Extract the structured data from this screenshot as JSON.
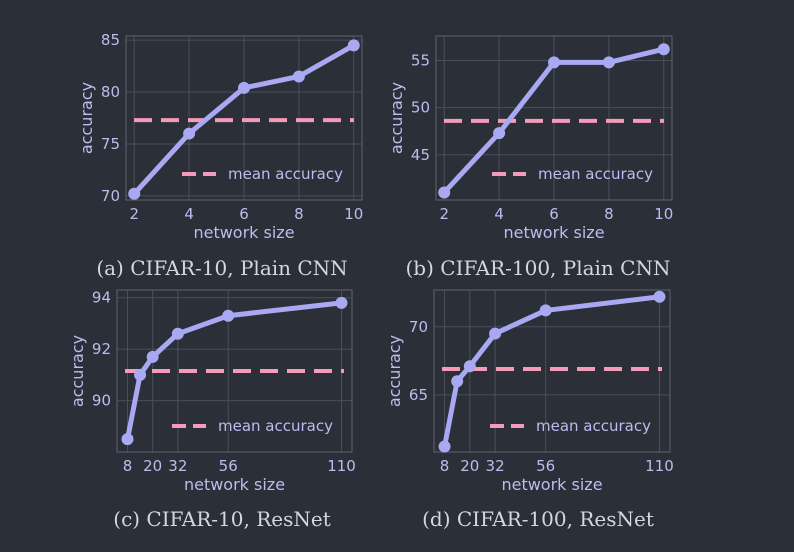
{
  "colors": {
    "background": "#2b2f38",
    "axes": "#565b66",
    "grid": "#4a4f5b",
    "series": "#a8a9f2",
    "mean": "#f59ab8",
    "text": "#b8bfee",
    "caption": "#d4d6e0"
  },
  "chart_data": [
    {
      "type": "line",
      "caption": "(a) CIFAR-10, Plain CNN",
      "xlabel": "network size",
      "ylabel": "accuracy",
      "x": [
        2,
        4,
        6,
        8,
        10
      ],
      "xticks": [
        2,
        4,
        6,
        8,
        10
      ],
      "xlim": [
        1.7,
        10.3
      ],
      "yticks": [
        70,
        75,
        80,
        85
      ],
      "ylim": [
        69.6,
        85.4
      ],
      "grid": true,
      "legend_position": "lower-right",
      "series": [
        {
          "values": [
            70.2,
            76.0,
            80.4,
            81.5,
            84.5
          ]
        }
      ],
      "mean_line": {
        "label": "mean accuracy",
        "value": 77.3
      }
    },
    {
      "type": "line",
      "caption": "(b) CIFAR-100, Plain CNN",
      "xlabel": "network size",
      "ylabel": "accuracy",
      "x": [
        2,
        4,
        6,
        8,
        10
      ],
      "xticks": [
        2,
        4,
        6,
        8,
        10
      ],
      "xlim": [
        1.7,
        10.3
      ],
      "yticks": [
        45,
        50,
        55
      ],
      "ylim": [
        40.2,
        57.6
      ],
      "grid": true,
      "legend_position": "lower-right",
      "series": [
        {
          "values": [
            41.0,
            47.3,
            54.8,
            54.8,
            56.2
          ]
        }
      ],
      "mean_line": {
        "label": "mean accuracy",
        "value": 48.6
      }
    },
    {
      "type": "line",
      "caption": "(c) CIFAR-10, ResNet",
      "xlabel": "network size",
      "ylabel": "accuracy",
      "x": [
        8,
        14,
        20,
        32,
        56,
        110
      ],
      "xticks": [
        8,
        20,
        32,
        56,
        110
      ],
      "xlim": [
        3,
        115
      ],
      "yticks": [
        90,
        92,
        94
      ],
      "ylim": [
        88.0,
        94.3
      ],
      "grid": true,
      "legend_position": "lower-right",
      "series": [
        {
          "values": [
            88.5,
            91.0,
            91.7,
            92.6,
            93.3,
            93.8
          ]
        }
      ],
      "mean_line": {
        "label": "mean accuracy",
        "value": 91.15
      }
    },
    {
      "type": "line",
      "caption": "(d) CIFAR-100, ResNet",
      "xlabel": "network size",
      "ylabel": "accuracy",
      "x": [
        8,
        14,
        20,
        32,
        56,
        110
      ],
      "xticks": [
        8,
        20,
        32,
        56,
        110
      ],
      "xlim": [
        3,
        115
      ],
      "yticks": [
        65,
        70
      ],
      "ylim": [
        60.8,
        72.7
      ],
      "grid": true,
      "legend_position": "lower-right",
      "series": [
        {
          "values": [
            61.2,
            66.0,
            67.1,
            69.5,
            71.2,
            72.2
          ]
        }
      ],
      "mean_line": {
        "label": "mean accuracy",
        "value": 66.9
      }
    }
  ]
}
